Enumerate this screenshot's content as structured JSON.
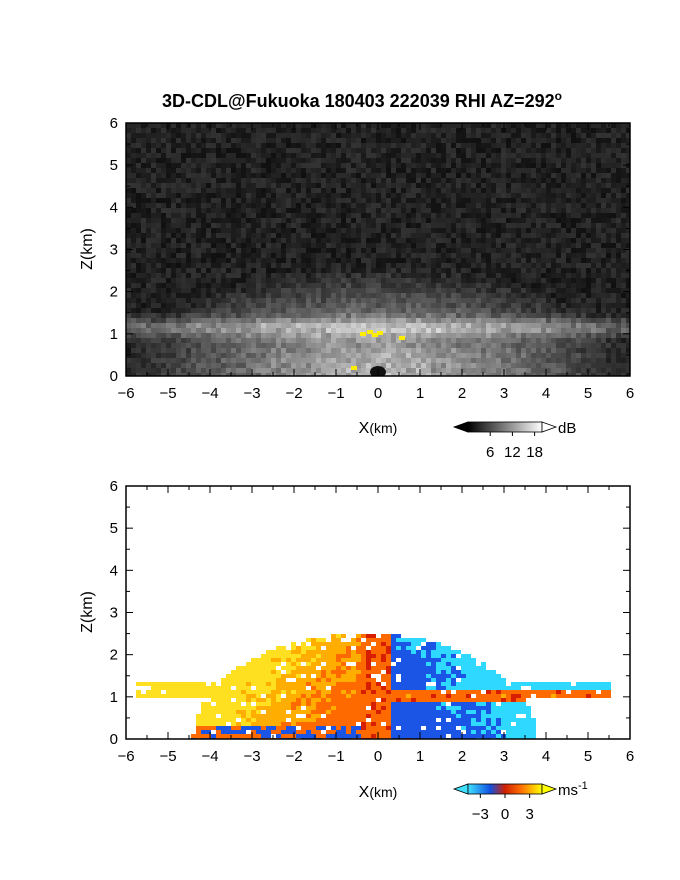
{
  "chart_data": [
    {
      "type": "heatmap",
      "title": "3D-CDL@Fukuoka 180403 222039 RHI AZ=292",
      "title_sup": "o",
      "xlabel": "X",
      "xlabel_unit": "(km)",
      "ylabel": "Z(km)",
      "xlim": [
        -6,
        6
      ],
      "ylim": [
        0,
        6
      ],
      "xticks": [
        "-6",
        "-5",
        "-4",
        "-3",
        "-2",
        "-1",
        "0",
        "1",
        "2",
        "3",
        "4",
        "5",
        "6"
      ],
      "yticks": [
        "0",
        "1",
        "2",
        "3",
        "4",
        "5",
        "6"
      ],
      "colorbar": {
        "unit": "dB",
        "unit_sup": "",
        "ticks": [
          "6",
          "12",
          "18"
        ],
        "tick_values": [
          6,
          12,
          18
        ],
        "range": [
          0,
          20
        ]
      },
      "colormap": "grayscale"
    },
    {
      "type": "heatmap",
      "title": "",
      "xlabel": "X",
      "xlabel_unit": "(km)",
      "ylabel": "Z(km)",
      "xlim": [
        -6,
        6
      ],
      "ylim": [
        0,
        6
      ],
      "xticks": [
        "-6",
        "-5",
        "-4",
        "-3",
        "-2",
        "-1",
        "0",
        "1",
        "2",
        "3",
        "4",
        "5",
        "6"
      ],
      "yticks": [
        "0",
        "1",
        "2",
        "3",
        "4",
        "5",
        "6"
      ],
      "colorbar": {
        "unit": "ms",
        "unit_sup": "-1",
        "ticks": [
          "-3",
          "0",
          "3"
        ],
        "tick_values": [
          -3,
          0,
          3
        ],
        "range": [
          -4.5,
          4.5
        ]
      },
      "colormap": "cyan-blue-red-yellow"
    }
  ]
}
